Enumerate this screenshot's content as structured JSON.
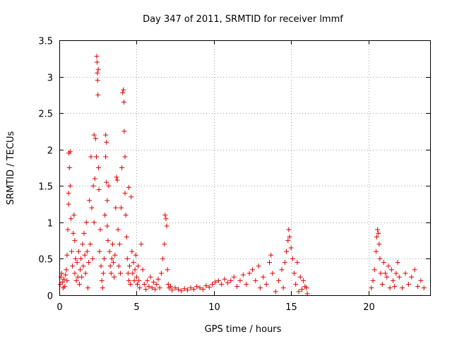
{
  "chart_data": {
    "type": "scatter",
    "title": "Day 347 of 2011, SRMTID for receiver lmmf",
    "xlabel": "GPS time / hours",
    "ylabel": "SRMTID / TECUs",
    "xlim": [
      0,
      24
    ],
    "ylim": [
      0,
      3.5
    ],
    "x_ticks": [
      0,
      5,
      10,
      15,
      20
    ],
    "x_tick_labels": [
      "0",
      "5",
      "10",
      "15",
      "20"
    ],
    "y_ticks": [
      0,
      0.5,
      1,
      1.5,
      2,
      2.5,
      3,
      3.5
    ],
    "y_tick_labels": [
      "0",
      "0.5",
      "1",
      "1.5",
      "2",
      "2.5",
      "3",
      "3.5"
    ],
    "grid": true,
    "marker": "+",
    "marker_color": "#e00000",
    "series": [
      {
        "name": "SRMTID",
        "points": [
          [
            0.05,
            0.15
          ],
          [
            0.1,
            0.25
          ],
          [
            0.15,
            0.3
          ],
          [
            0.2,
            0.18
          ],
          [
            0.25,
            0.1
          ],
          [
            0.3,
            0.22
          ],
          [
            0.35,
            0.12
          ],
          [
            0.4,
            0.28
          ],
          [
            0.45,
            0.35
          ],
          [
            0.5,
            0.2
          ],
          [
            0.5,
            0.55
          ],
          [
            0.55,
            0.9
          ],
          [
            0.6,
            1.25
          ],
          [
            0.6,
            1.4
          ],
          [
            0.62,
            1.95
          ],
          [
            0.65,
            1.75
          ],
          [
            0.7,
            1.97
          ],
          [
            0.7,
            1.5
          ],
          [
            0.75,
            1.05
          ],
          [
            0.8,
            0.6
          ],
          [
            0.85,
            0.4
          ],
          [
            0.9,
            0.85
          ],
          [
            0.95,
            1.1
          ],
          [
            1.0,
            0.75
          ],
          [
            1.0,
            0.3
          ],
          [
            1.05,
            0.5
          ],
          [
            1.1,
            0.2
          ],
          [
            1.15,
            0.45
          ],
          [
            1.2,
            0.25
          ],
          [
            1.25,
            0.6
          ],
          [
            1.3,
            0.15
          ],
          [
            1.35,
            0.35
          ],
          [
            1.4,
            0.5
          ],
          [
            1.45,
            0.25
          ],
          [
            1.5,
            0.7
          ],
          [
            1.55,
            0.4
          ],
          [
            1.6,
            0.85
          ],
          [
            1.65,
            0.55
          ],
          [
            1.7,
            0.3
          ],
          [
            1.75,
            1.0
          ],
          [
            1.8,
            0.6
          ],
          [
            1.85,
            0.1
          ],
          [
            1.9,
            0.45
          ],
          [
            1.95,
            1.3
          ],
          [
            2.0,
            0.7
          ],
          [
            2.05,
            1.9
          ],
          [
            2.1,
            1.2
          ],
          [
            2.15,
            0.5
          ],
          [
            2.2,
            1.5
          ],
          [
            2.25,
            1.0
          ],
          [
            2.25,
            2.2
          ],
          [
            2.3,
            1.6
          ],
          [
            2.35,
            2.15
          ],
          [
            2.4,
            1.9
          ],
          [
            2.42,
            3.28
          ],
          [
            2.44,
            3.2
          ],
          [
            2.46,
            3.05
          ],
          [
            2.48,
            2.95
          ],
          [
            2.5,
            2.75
          ],
          [
            2.52,
            3.1
          ],
          [
            2.54,
            1.75
          ],
          [
            2.56,
            1.45
          ],
          [
            2.6,
            0.6
          ],
          [
            2.65,
            0.9
          ],
          [
            2.7,
            0.4
          ],
          [
            2.75,
            0.2
          ],
          [
            2.8,
            0.1
          ],
          [
            2.85,
            0.3
          ],
          [
            2.9,
            0.5
          ],
          [
            2.95,
            1.1
          ],
          [
            3.0,
            2.2
          ],
          [
            3.0,
            1.9
          ],
          [
            3.05,
            2.1
          ],
          [
            3.05,
            1.55
          ],
          [
            3.1,
            1.3
          ],
          [
            3.1,
            0.95
          ],
          [
            3.15,
            0.75
          ],
          [
            3.2,
            1.5
          ],
          [
            3.25,
            0.6
          ],
          [
            3.3,
            0.4
          ],
          [
            3.35,
            0.3
          ],
          [
            3.4,
            0.5
          ],
          [
            3.45,
            0.7
          ],
          [
            3.5,
            0.45
          ],
          [
            3.55,
            0.25
          ],
          [
            3.6,
            0.55
          ],
          [
            3.65,
            1.2
          ],
          [
            3.7,
            1.62
          ],
          [
            3.75,
            1.58
          ],
          [
            3.8,
            0.9
          ],
          [
            3.85,
            0.4
          ],
          [
            3.9,
            0.7
          ],
          [
            3.95,
            0.3
          ],
          [
            4.0,
            1.2
          ],
          [
            4.05,
            1.75
          ],
          [
            4.1,
            2.78
          ],
          [
            4.15,
            2.82
          ],
          [
            4.18,
            2.65
          ],
          [
            4.2,
            2.25
          ],
          [
            4.25,
            1.9
          ],
          [
            4.25,
            1.4
          ],
          [
            4.3,
            1.1
          ],
          [
            4.35,
            0.8
          ],
          [
            4.4,
            0.5
          ],
          [
            4.45,
            0.3
          ],
          [
            4.5,
            1.48
          ],
          [
            4.5,
            0.2
          ],
          [
            4.55,
            0.4
          ],
          [
            4.6,
            0.15
          ],
          [
            4.65,
            1.35
          ],
          [
            4.7,
            0.6
          ],
          [
            4.75,
            0.3
          ],
          [
            4.8,
            0.45
          ],
          [
            4.85,
            0.2
          ],
          [
            4.9,
            0.35
          ],
          [
            4.95,
            0.55
          ],
          [
            5.0,
            0.25
          ],
          [
            5.05,
            0.15
          ],
          [
            5.1,
            0.4
          ],
          [
            5.15,
            0.2
          ],
          [
            5.2,
            0.1
          ],
          [
            5.3,
            0.7
          ],
          [
            5.4,
            0.35
          ],
          [
            5.5,
            0.15
          ],
          [
            5.6,
            0.08
          ],
          [
            5.7,
            0.2
          ],
          [
            5.8,
            0.12
          ],
          [
            5.9,
            0.25
          ],
          [
            6.0,
            0.1
          ],
          [
            6.1,
            0.18
          ],
          [
            6.2,
            0.08
          ],
          [
            6.3,
            0.15
          ],
          [
            6.4,
            0.22
          ],
          [
            6.5,
            0.1
          ],
          [
            6.6,
            0.3
          ],
          [
            6.7,
            0.5
          ],
          [
            6.8,
            0.7
          ],
          [
            6.85,
            1.1
          ],
          [
            6.9,
            1.05
          ],
          [
            6.95,
            0.95
          ],
          [
            7.0,
            0.35
          ],
          [
            7.05,
            0.15
          ],
          [
            7.1,
            0.1
          ],
          [
            7.2,
            0.12
          ],
          [
            7.3,
            0.07
          ],
          [
            7.5,
            0.1
          ],
          [
            7.7,
            0.08
          ],
          [
            7.9,
            0.06
          ],
          [
            8.1,
            0.09
          ],
          [
            8.3,
            0.07
          ],
          [
            8.5,
            0.1
          ],
          [
            8.7,
            0.08
          ],
          [
            8.9,
            0.12
          ],
          [
            9.1,
            0.1
          ],
          [
            9.3,
            0.08
          ],
          [
            9.5,
            0.13
          ],
          [
            9.7,
            0.11
          ],
          [
            9.9,
            0.15
          ],
          [
            10.1,
            0.18
          ],
          [
            10.3,
            0.2
          ],
          [
            10.5,
            0.15
          ],
          [
            10.7,
            0.22
          ],
          [
            10.9,
            0.17
          ],
          [
            11.1,
            0.2
          ],
          [
            11.3,
            0.25
          ],
          [
            11.5,
            0.12
          ],
          [
            11.7,
            0.2
          ],
          [
            11.9,
            0.28
          ],
          [
            12.1,
            0.15
          ],
          [
            12.3,
            0.3
          ],
          [
            12.5,
            0.35
          ],
          [
            12.7,
            0.2
          ],
          [
            12.9,
            0.4
          ],
          [
            13.0,
            0.1
          ],
          [
            13.2,
            0.25
          ],
          [
            13.4,
            0.15
          ],
          [
            13.6,
            0.45
          ],
          [
            13.7,
            0.55
          ],
          [
            13.8,
            0.3
          ],
          [
            14.0,
            0.05
          ],
          [
            14.2,
            0.2
          ],
          [
            14.4,
            0.35
          ],
          [
            14.5,
            0.1
          ],
          [
            14.6,
            0.45
          ],
          [
            14.7,
            0.6
          ],
          [
            14.8,
            0.75
          ],
          [
            14.85,
            0.9
          ],
          [
            14.9,
            0.8
          ],
          [
            15.0,
            0.65
          ],
          [
            15.1,
            0.5
          ],
          [
            15.2,
            0.3
          ],
          [
            15.3,
            0.15
          ],
          [
            15.4,
            0.45
          ],
          [
            15.5,
            0.05
          ],
          [
            15.6,
            0.25
          ],
          [
            15.7,
            0.08
          ],
          [
            15.8,
            0.2
          ],
          [
            15.9,
            0.12
          ],
          [
            16.0,
            0.1
          ],
          [
            16.05,
            0.02
          ],
          [
            20.2,
            0.1
          ],
          [
            20.3,
            0.2
          ],
          [
            20.4,
            0.35
          ],
          [
            20.5,
            0.6
          ],
          [
            20.55,
            0.8
          ],
          [
            20.6,
            0.9
          ],
          [
            20.65,
            0.85
          ],
          [
            20.7,
            0.7
          ],
          [
            20.75,
            0.5
          ],
          [
            20.8,
            0.3
          ],
          [
            20.9,
            0.15
          ],
          [
            21.0,
            0.45
          ],
          [
            21.1,
            0.3
          ],
          [
            21.2,
            0.25
          ],
          [
            21.3,
            0.4
          ],
          [
            21.4,
            0.1
          ],
          [
            21.5,
            0.35
          ],
          [
            21.6,
            0.2
          ],
          [
            21.7,
            0.12
          ],
          [
            21.8,
            0.3
          ],
          [
            21.9,
            0.45
          ],
          [
            22.0,
            0.25
          ],
          [
            22.2,
            0.1
          ],
          [
            22.4,
            0.3
          ],
          [
            22.6,
            0.15
          ],
          [
            22.8,
            0.25
          ],
          [
            23.0,
            0.35
          ],
          [
            23.2,
            0.12
          ],
          [
            23.4,
            0.2
          ],
          [
            23.6,
            0.1
          ]
        ]
      }
    ]
  }
}
